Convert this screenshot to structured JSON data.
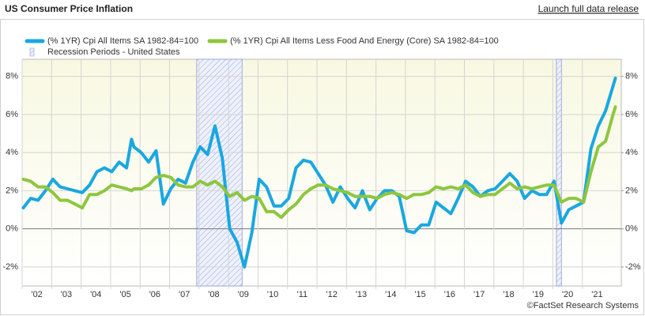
{
  "chart_data": {
    "type": "line",
    "title": "US Consumer Price Inflation",
    "link": "Launch full data release",
    "source": "©FactSet Research Systems",
    "x": [
      2002.04,
      2002.29,
      2002.54,
      2002.79,
      2003.04,
      2003.29,
      2003.54,
      2003.79,
      2004.04,
      2004.29,
      2004.54,
      2004.79,
      2005.04,
      2005.29,
      2005.54,
      2005.71,
      2005.79,
      2006.04,
      2006.29,
      2006.54,
      2006.79,
      2007.04,
      2007.29,
      2007.54,
      2007.79,
      2008.04,
      2008.29,
      2008.54,
      2008.79,
      2009.04,
      2009.29,
      2009.54,
      2009.79,
      2010.04,
      2010.29,
      2010.54,
      2010.79,
      2011.04,
      2011.29,
      2011.54,
      2011.79,
      2012.04,
      2012.29,
      2012.54,
      2012.79,
      2013.04,
      2013.29,
      2013.54,
      2013.79,
      2014.04,
      2014.29,
      2014.54,
      2014.79,
      2015.04,
      2015.29,
      2015.54,
      2015.79,
      2016.04,
      2016.29,
      2016.54,
      2016.79,
      2017.04,
      2017.29,
      2017.54,
      2017.79,
      2018.04,
      2018.29,
      2018.54,
      2018.79,
      2019.04,
      2019.29,
      2019.54,
      2019.79,
      2020.04,
      2020.29,
      2020.54,
      2020.79,
      2021.04,
      2021.29,
      2021.54,
      2021.79,
      2022.04,
      2022.12
    ],
    "series": [
      {
        "name": "(% 1YR) Cpi All Items SA 1982-84=100",
        "color": "#1aa7e0",
        "values": [
          1.1,
          1.6,
          1.5,
          2.0,
          2.6,
          2.2,
          2.1,
          2.0,
          1.9,
          2.3,
          3.0,
          3.2,
          3.0,
          3.5,
          3.2,
          4.7,
          4.3,
          4.0,
          3.5,
          4.1,
          1.3,
          2.1,
          2.6,
          2.4,
          3.5,
          4.3,
          3.9,
          5.4,
          3.7,
          0.0,
          -0.7,
          -2.0,
          -0.2,
          2.6,
          2.2,
          1.2,
          1.2,
          1.6,
          3.2,
          3.6,
          3.5,
          2.9,
          2.3,
          1.4,
          2.2,
          1.6,
          1.1,
          2.0,
          1.0,
          1.6,
          2.0,
          2.0,
          1.7,
          -0.1,
          -0.2,
          0.2,
          0.2,
          1.4,
          1.1,
          0.8,
          1.6,
          2.5,
          2.2,
          1.7,
          2.0,
          2.1,
          2.5,
          2.9,
          2.5,
          1.6,
          2.0,
          1.8,
          1.8,
          2.5,
          0.3,
          1.0,
          1.2,
          1.4,
          4.2,
          5.4,
          6.2,
          7.5,
          7.9
        ]
      },
      {
        "name": "(% 1YR) Cpi All Items Less Food And Energy (Core) SA 1982-84=100",
        "color": "#8dc63f",
        "values": [
          2.6,
          2.5,
          2.2,
          2.2,
          1.9,
          1.5,
          1.5,
          1.3,
          1.1,
          1.8,
          1.8,
          2.0,
          2.3,
          2.2,
          2.1,
          2.0,
          2.1,
          2.1,
          2.3,
          2.7,
          2.8,
          2.7,
          2.3,
          2.2,
          2.2,
          2.5,
          2.3,
          2.5,
          2.2,
          1.7,
          1.9,
          1.5,
          1.7,
          1.6,
          0.9,
          0.9,
          0.6,
          1.0,
          1.3,
          1.8,
          2.1,
          2.3,
          2.3,
          2.1,
          2.0,
          1.9,
          1.7,
          1.7,
          1.7,
          1.6,
          1.8,
          1.9,
          1.8,
          1.6,
          1.8,
          1.8,
          1.9,
          2.2,
          2.1,
          2.2,
          2.1,
          2.3,
          1.9,
          1.7,
          1.8,
          1.8,
          2.1,
          2.4,
          2.1,
          2.2,
          2.1,
          2.2,
          2.3,
          2.3,
          1.4,
          1.6,
          1.6,
          1.4,
          3.0,
          4.3,
          4.6,
          6.0,
          6.4
        ]
      }
    ],
    "recessions": {
      "name": "Recession Periods - United States",
      "periods": [
        [
          2007.92,
          2009.46
        ],
        [
          2020.12,
          2020.29
        ]
      ]
    },
    "xlim": [
      2002.0,
      2022.32
    ],
    "xticks": [
      {
        "value": 2002,
        "label": "'02"
      },
      {
        "value": 2003,
        "label": "'03"
      },
      {
        "value": 2004,
        "label": "'04"
      },
      {
        "value": 2005,
        "label": "'05"
      },
      {
        "value": 2006,
        "label": "'06"
      },
      {
        "value": 2007,
        "label": "'07"
      },
      {
        "value": 2008,
        "label": "'08"
      },
      {
        "value": 2009,
        "label": "'09"
      },
      {
        "value": 2010,
        "label": "'10"
      },
      {
        "value": 2011,
        "label": "'11"
      },
      {
        "value": 2012,
        "label": "'12"
      },
      {
        "value": 2013,
        "label": "'13"
      },
      {
        "value": 2014,
        "label": "'14"
      },
      {
        "value": 2015,
        "label": "'15"
      },
      {
        "value": 2016,
        "label": "'16"
      },
      {
        "value": 2017,
        "label": "'17"
      },
      {
        "value": 2018,
        "label": "'18"
      },
      {
        "value": 2019,
        "label": "'19"
      },
      {
        "value": 2020,
        "label": "'20"
      },
      {
        "value": 2021,
        "label": "'21"
      }
    ],
    "ylim": [
      -3.0,
      8.9
    ],
    "yticks": [
      {
        "value": -2,
        "label": "-2%"
      },
      {
        "value": 0,
        "label": "0%"
      },
      {
        "value": 2,
        "label": "2%"
      },
      {
        "value": 4,
        "label": "4%"
      },
      {
        "value": 6,
        "label": "6%"
      },
      {
        "value": 8,
        "label": "8%"
      }
    ],
    "y2lim": [
      -3.0,
      8.9
    ],
    "y2ticks": [
      {
        "value": -2,
        "label": "-2%"
      },
      {
        "value": 0,
        "label": "0%"
      },
      {
        "value": 2,
        "label": "2%"
      },
      {
        "value": 4,
        "label": "4%"
      },
      {
        "value": 6,
        "label": "6%"
      },
      {
        "value": 8,
        "label": "8%"
      }
    ],
    "grid": true
  }
}
